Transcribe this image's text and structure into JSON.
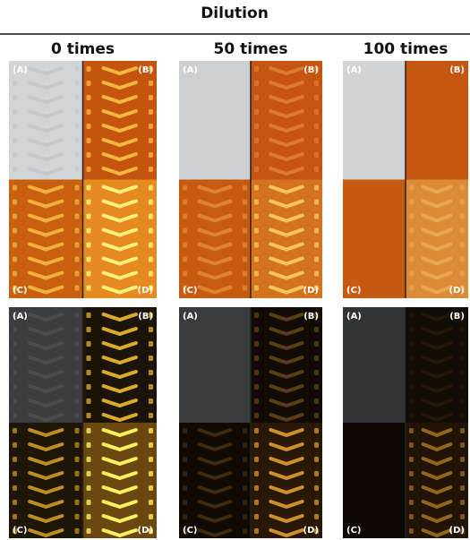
{
  "header": {
    "title": "Dilution"
  },
  "columns": [
    {
      "label": "0 times"
    },
    {
      "label": "50 times"
    },
    {
      "label": "100 times"
    }
  ],
  "quadrant_labels": [
    "(A)",
    "(B)",
    "(C)",
    "(D)"
  ]
}
